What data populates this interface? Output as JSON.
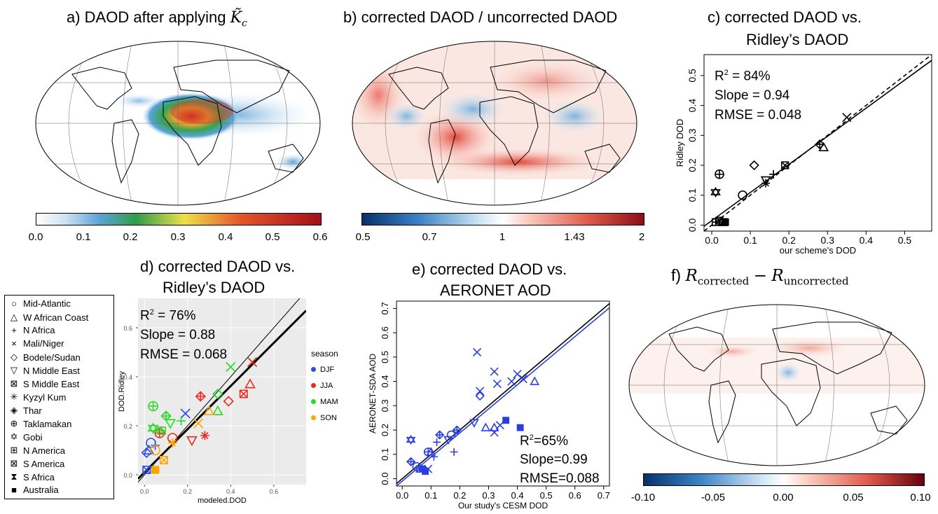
{
  "titles": {
    "a": "a) DAOD after applying",
    "a_math": "K̃",
    "a_sub": "c",
    "b": "b) corrected DAOD / uncorrected DAOD",
    "c1": "c) corrected DAOD vs.",
    "c2": "Ridley’s DAOD",
    "d1": "d) corrected DAOD vs.",
    "d2": "Ridley’s DAOD",
    "e1": "e) corrected DAOD vs.",
    "e2": "AERONET AOD",
    "f_prefix": "f)",
    "f_R1": "R",
    "f_sub1": "corrected",
    "f_minus": "−",
    "f_R2": "R",
    "f_sub2": "uncorrected"
  },
  "colorbars": {
    "a": {
      "ticks": [
        "0.0",
        "0.1",
        "0.2",
        "0.3",
        "0.4",
        "0.5",
        "0.6"
      ],
      "colors": [
        "#ffffff",
        "#cfe3f3",
        "#5ea3d8",
        "#2f9c4a",
        "#eee04a",
        "#e4542a",
        "#a3101a"
      ]
    },
    "b": {
      "ticks": [
        "0.5",
        "0.7",
        "1",
        "1.43",
        "2"
      ],
      "colors": [
        "#08306b",
        "#3b82c4",
        "#d0e6f4",
        "#ffffff",
        "#f9d0c4",
        "#e05a4a",
        "#8c0f18"
      ]
    },
    "f": {
      "ticks": [
        "-0.10",
        "-0.05",
        "0.00",
        "0.05",
        "0.10"
      ],
      "colors": [
        "#08306b",
        "#3b82c4",
        "#d0e6f4",
        "#ffffff",
        "#f9d0c4",
        "#e05a4a",
        "#67000d"
      ]
    }
  },
  "legend": {
    "items": [
      {
        "label": "Mid-Atlantic",
        "symbol": "○"
      },
      {
        "label": "W African Coast",
        "symbol": "△"
      },
      {
        "label": "N Africa",
        "symbol": "+"
      },
      {
        "label": "Mali/Niger",
        "symbol": "×"
      },
      {
        "label": "Bodele/Sudan",
        "symbol": "◇"
      },
      {
        "label": "N Middle East",
        "symbol": "▽"
      },
      {
        "label": "S Middle East",
        "symbol": "⊠"
      },
      {
        "label": "Kyzyl Kum",
        "symbol": "✳"
      },
      {
        "label": "Thar",
        "symbol": "◈"
      },
      {
        "label": "Taklamakan",
        "symbol": "⊕"
      },
      {
        "label": "Gobi",
        "symbol": "✡"
      },
      {
        "label": "N America",
        "symbol": "⊞"
      },
      {
        "label": "S America",
        "symbol": "⊠"
      },
      {
        "label": "S Africa",
        "symbol": "⧗"
      },
      {
        "label": "Australia",
        "symbol": "■"
      }
    ]
  },
  "season_legend": {
    "title": "season",
    "items": [
      {
        "label": "DJF",
        "color": "#2b4cf0"
      },
      {
        "label": "JJA",
        "color": "#ee2a1e"
      },
      {
        "label": "MAM",
        "color": "#22dd22"
      },
      {
        "label": "SON",
        "color": "#ffa500"
      }
    ]
  },
  "stats": {
    "c": {
      "r2_label": "R",
      "r2_sup": "2",
      "r2_value": " = 84%",
      "slope": "Slope = 0.94",
      "rmse": "RMSE = 0.048"
    },
    "d": {
      "r2_label": "R",
      "r2_sup": "2",
      "r2_value": " = 76%",
      "slope": "Slope = 0.88",
      "rmse": "RMSE = 0.068"
    },
    "e": {
      "r2_label": "R",
      "r2_sup": "2",
      "r2_value": "=65%",
      "slope": "Slope=0.99",
      "rmse": "RMSE=0.088"
    }
  },
  "chart_data": [
    {
      "panel": "c",
      "type": "scatter",
      "xlabel": "our scheme's DOD",
      "ylabel": "Ridley DOD",
      "xlim": [
        -0.02,
        0.57
      ],
      "ylim": [
        -0.02,
        0.57
      ],
      "xticks": [
        "0.0",
        "0.1",
        "0.2",
        "0.3",
        "0.4",
        "0.5"
      ],
      "yticks": [
        "0.0",
        "0.1",
        "0.2",
        "0.3",
        "0.4",
        "0.5"
      ],
      "points": [
        {
          "region": "Mid-Atlantic",
          "sym": "circle",
          "x": 0.08,
          "y": 0.1
        },
        {
          "region": "W African Coast",
          "sym": "tri",
          "x": 0.29,
          "y": 0.26
        },
        {
          "region": "N Africa",
          "sym": "plus",
          "x": 0.16,
          "y": 0.17
        },
        {
          "region": "Mali/Niger",
          "sym": "x",
          "x": 0.35,
          "y": 0.36
        },
        {
          "region": "Bodele/Sudan",
          "sym": "diamond",
          "x": 0.11,
          "y": 0.2
        },
        {
          "region": "N Middle East",
          "sym": "tridown",
          "x": 0.14,
          "y": 0.15
        },
        {
          "region": "S Middle East",
          "sym": "boxx",
          "x": 0.19,
          "y": 0.2
        },
        {
          "region": "Kyzyl Kum",
          "sym": "star",
          "x": 0.14,
          "y": 0.14
        },
        {
          "region": "Thar",
          "sym": "diamondplus",
          "x": 0.28,
          "y": 0.27
        },
        {
          "region": "Taklamakan",
          "sym": "circleplus",
          "x": 0.02,
          "y": 0.17
        },
        {
          "region": "Gobi",
          "sym": "david",
          "x": 0.01,
          "y": 0.11
        },
        {
          "region": "N America",
          "sym": "boxplus",
          "x": 0.01,
          "y": 0.01
        },
        {
          "region": "S America",
          "sym": "boxx",
          "x": 0.02,
          "y": 0.015
        },
        {
          "region": "S Africa",
          "sym": "hourglass",
          "x": 0.03,
          "y": 0.01
        },
        {
          "region": "Australia",
          "sym": "square",
          "x": 0.035,
          "y": 0.01
        }
      ],
      "lines": [
        {
          "name": "fit",
          "intercept": 0.015,
          "slope": 0.94,
          "style": "solid"
        },
        {
          "name": "1:1",
          "intercept": 0.0,
          "slope": 1.0,
          "style": "dashed"
        }
      ]
    },
    {
      "panel": "d",
      "type": "scatter",
      "xlabel": "modeled.DOD",
      "ylabel": "DOD.Ridley",
      "xlim": [
        -0.03,
        0.75
      ],
      "ylim": [
        -0.04,
        0.72
      ],
      "xticks": [
        "0.0",
        "0.2",
        "0.4",
        "0.6"
      ],
      "yticks": [
        "0.0",
        "0.2",
        "0.4",
        "0.6"
      ],
      "points": [
        {
          "season": "DJF",
          "sym": "x",
          "x": 0.19,
          "y": 0.25
        },
        {
          "season": "DJF",
          "sym": "circle",
          "x": 0.03,
          "y": 0.13
        },
        {
          "season": "DJF",
          "sym": "tri",
          "x": 0.02,
          "y": 0.1
        },
        {
          "season": "DJF",
          "sym": "plus",
          "x": 0.05,
          "y": 0.12
        },
        {
          "season": "DJF",
          "sym": "diamond",
          "x": 0.01,
          "y": 0.09
        },
        {
          "season": "DJF",
          "sym": "boxx",
          "x": 0.01,
          "y": 0.02
        },
        {
          "season": "JJA",
          "sym": "x",
          "x": 0.5,
          "y": 0.46
        },
        {
          "season": "JJA",
          "sym": "tri",
          "x": 0.49,
          "y": 0.37
        },
        {
          "season": "JJA",
          "sym": "diamond",
          "x": 0.39,
          "y": 0.3
        },
        {
          "season": "JJA",
          "sym": "boxx",
          "x": 0.46,
          "y": 0.33
        },
        {
          "season": "JJA",
          "sym": "diamondplus",
          "x": 0.26,
          "y": 0.32
        },
        {
          "season": "JJA",
          "sym": "star",
          "x": 0.28,
          "y": 0.16
        },
        {
          "season": "JJA",
          "sym": "tridown",
          "x": 0.22,
          "y": 0.14
        },
        {
          "season": "JJA",
          "sym": "circleplus",
          "x": 0.07,
          "y": 0.17
        },
        {
          "season": "JJA",
          "sym": "circle",
          "x": 0.13,
          "y": 0.15
        },
        {
          "season": "MAM",
          "sym": "x",
          "x": 0.4,
          "y": 0.44
        },
        {
          "season": "MAM",
          "sym": "diamond",
          "x": 0.34,
          "y": 0.33
        },
        {
          "season": "MAM",
          "sym": "tri",
          "x": 0.34,
          "y": 0.26
        },
        {
          "season": "MAM",
          "sym": "circleplus",
          "x": 0.04,
          "y": 0.28
        },
        {
          "season": "MAM",
          "sym": "diamondplus",
          "x": 0.1,
          "y": 0.24
        },
        {
          "season": "MAM",
          "sym": "tridown",
          "x": 0.12,
          "y": 0.21
        },
        {
          "season": "MAM",
          "sym": "plus",
          "x": 0.17,
          "y": 0.22
        },
        {
          "season": "MAM",
          "sym": "david",
          "x": 0.04,
          "y": 0.19
        },
        {
          "season": "MAM",
          "sym": "boxplus",
          "x": 0.08,
          "y": 0.18
        },
        {
          "season": "SON",
          "sym": "tri",
          "x": 0.3,
          "y": 0.26
        },
        {
          "season": "SON",
          "sym": "x",
          "x": 0.25,
          "y": 0.21
        },
        {
          "season": "SON",
          "sym": "star",
          "x": 0.13,
          "y": 0.13
        },
        {
          "season": "SON",
          "sym": "circle",
          "x": 0.05,
          "y": 0.1
        },
        {
          "season": "SON",
          "sym": "square",
          "x": 0.05,
          "y": 0.02
        },
        {
          "season": "SON",
          "sym": "boxx",
          "x": 0.09,
          "y": 0.06
        }
      ],
      "lines": [
        {
          "name": "fit",
          "intercept": 0.01,
          "slope": 0.88,
          "style": "bold"
        },
        {
          "name": "1:1",
          "intercept": 0.0,
          "slope": 1.0,
          "style": "thin"
        }
      ]
    },
    {
      "panel": "e",
      "type": "scatter",
      "xlabel": "Our study's CESM DOD",
      "ylabel": "AERONET-SDA AOD",
      "xlim": [
        -0.02,
        0.72
      ],
      "ylim": [
        -0.03,
        0.73
      ],
      "xticks": [
        "0.0",
        "0.1",
        "0.2",
        "0.3",
        "0.4",
        "0.5",
        "0.6",
        "0.7"
      ],
      "yticks": [
        "0.0",
        "0.1",
        "0.2",
        "0.3",
        "0.4",
        "0.5",
        "0.6",
        "0.7"
      ],
      "points": [
        {
          "sym": "x",
          "x": 0.26,
          "y": 0.52
        },
        {
          "sym": "x",
          "x": 0.32,
          "y": 0.44
        },
        {
          "sym": "x",
          "x": 0.4,
          "y": 0.43
        },
        {
          "sym": "x",
          "x": 0.27,
          "y": 0.36
        },
        {
          "sym": "x",
          "x": 0.33,
          "y": 0.39
        },
        {
          "sym": "x",
          "x": 0.38,
          "y": 0.4
        },
        {
          "sym": "x",
          "x": 0.42,
          "y": 0.41
        },
        {
          "sym": "tri",
          "x": 0.46,
          "y": 0.4
        },
        {
          "sym": "diamond",
          "x": 0.27,
          "y": 0.34
        },
        {
          "sym": "tridown",
          "x": 0.25,
          "y": 0.23
        },
        {
          "sym": "tri",
          "x": 0.29,
          "y": 0.21
        },
        {
          "sym": "tri",
          "x": 0.32,
          "y": 0.21
        },
        {
          "sym": "x",
          "x": 0.32,
          "y": 0.19
        },
        {
          "sym": "x",
          "x": 0.34,
          "y": 0.22
        },
        {
          "sym": "square",
          "x": 0.36,
          "y": 0.24
        },
        {
          "sym": "square",
          "x": 0.41,
          "y": 0.21
        },
        {
          "sym": "diamondplus",
          "x": 0.13,
          "y": 0.18
        },
        {
          "sym": "circle",
          "x": 0.17,
          "y": 0.18
        },
        {
          "sym": "tridown",
          "x": 0.16,
          "y": 0.16
        },
        {
          "sym": "plus",
          "x": 0.12,
          "y": 0.15
        },
        {
          "sym": "circleplus",
          "x": 0.09,
          "y": 0.11
        },
        {
          "sym": "plus",
          "x": 0.18,
          "y": 0.11
        },
        {
          "sym": "diamondplus",
          "x": 0.19,
          "y": 0.2
        },
        {
          "sym": "david",
          "x": 0.03,
          "y": 0.16
        },
        {
          "sym": "diamondplus",
          "x": 0.03,
          "y": 0.07
        },
        {
          "sym": "plus",
          "x": 0.11,
          "y": 0.09
        },
        {
          "sym": "tri",
          "x": 0.1,
          "y": 0.11
        },
        {
          "sym": "circle",
          "x": 0.05,
          "y": 0.05
        },
        {
          "sym": "boxx",
          "x": 0.06,
          "y": 0.04
        },
        {
          "sym": "square",
          "x": 0.08,
          "y": 0.03
        },
        {
          "sym": "square",
          "x": 0.07,
          "y": 0.04
        },
        {
          "sym": "x",
          "x": 0.09,
          "y": 0.04
        }
      ],
      "lines": [
        {
          "name": "1:1",
          "intercept": 0.0,
          "slope": 1.0,
          "color": "#000000"
        },
        {
          "name": "fit",
          "intercept": -0.01,
          "slope": 0.99,
          "color": "#2b3fe0"
        }
      ]
    }
  ]
}
